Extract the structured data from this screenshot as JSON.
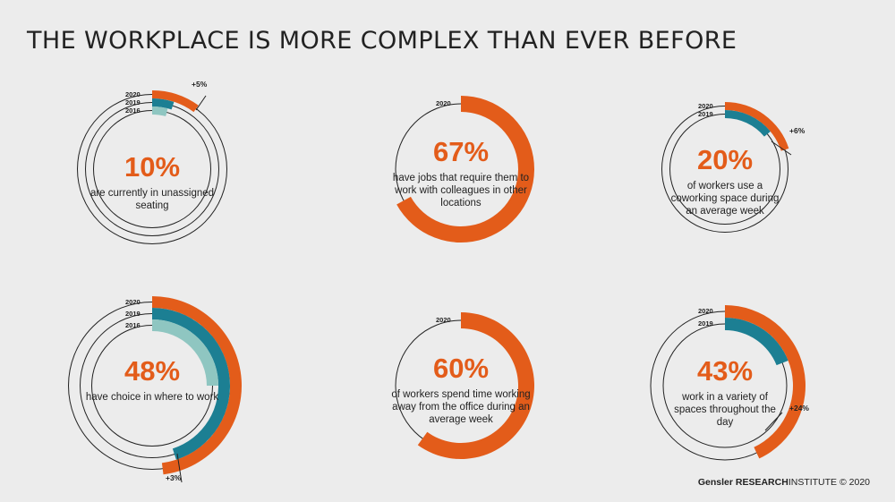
{
  "title": "THE WORKPLACE IS MORE COMPLEX THAN EVER BEFORE",
  "footer": {
    "brand": "Gensler",
    "research": "RESEARCH",
    "institute": "INSTITUTE",
    "copyright": "© 2020"
  },
  "colors": {
    "2020": "#e35c1a",
    "2019": "#1c7f93",
    "2016": "#8fc6c1",
    "outline": "#222222"
  },
  "chart_data": [
    {
      "type": "donut",
      "id": "unassigned",
      "headline": "10%",
      "description": "are currently in unassigned seating",
      "series": [
        {
          "year": "2020",
          "value": 10
        },
        {
          "year": "2019",
          "value": 5
        },
        {
          "year": "2016",
          "value": 4
        }
      ],
      "change_label": "+5%"
    },
    {
      "type": "donut",
      "id": "colleagues",
      "headline": "67%",
      "description": "have jobs that require them to work with colleagues in other locations",
      "series": [
        {
          "year": "2020",
          "value": 67
        }
      ]
    },
    {
      "type": "donut",
      "id": "coworking",
      "headline": "20%",
      "description": "of workers use a coworking space during an average week",
      "series": [
        {
          "year": "2020",
          "value": 20
        },
        {
          "year": "2019",
          "value": 14
        }
      ],
      "change_label": "+6%"
    },
    {
      "type": "donut",
      "id": "choice",
      "headline": "48%",
      "description": "have choice in where to work",
      "series": [
        {
          "year": "2020",
          "value": 48
        },
        {
          "year": "2019",
          "value": 45
        },
        {
          "year": "2016",
          "value": 25
        }
      ],
      "change_label": "+3%"
    },
    {
      "type": "donut",
      "id": "away",
      "headline": "60%",
      "description": "of workers spend time working away from the office during an average week",
      "series": [
        {
          "year": "2020",
          "value": 60
        }
      ]
    },
    {
      "type": "donut",
      "id": "variety",
      "headline": "43%",
      "description": "work in a variety of spaces throughout the day",
      "series": [
        {
          "year": "2020",
          "value": 43
        },
        {
          "year": "2019",
          "value": 19
        }
      ],
      "change_label": "+24%"
    }
  ]
}
